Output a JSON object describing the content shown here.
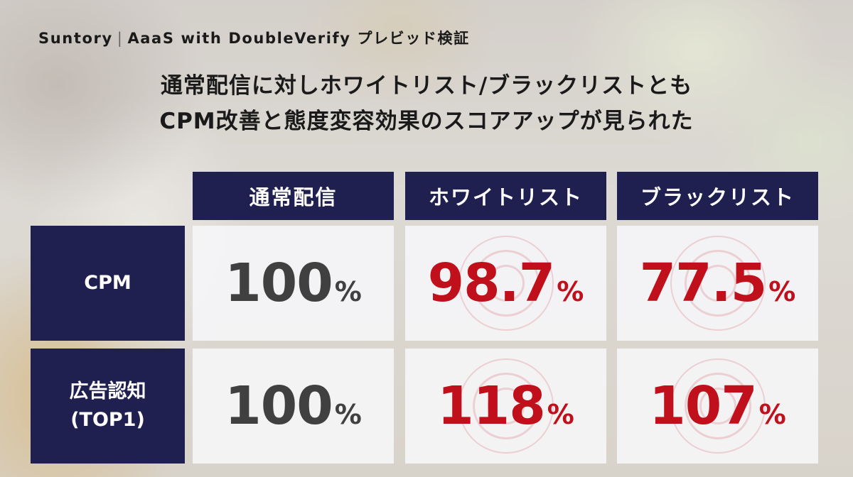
{
  "header": {
    "brand": "Suntory",
    "separator": "|",
    "title": "AaaS with DoubleVerify プレビッド検証"
  },
  "headline": {
    "line1": "通常配信に対しホワイトリスト/ブラックリストとも",
    "line2": "CPM改善と態度変容効果のスコアアップが見られた"
  },
  "table": {
    "columns": [
      "通常配信",
      "ホワイトリスト",
      "ブラックリスト"
    ],
    "rows": [
      {
        "label_line1": "CPM",
        "label_line2": "",
        "values": [
          "100",
          "98.7",
          "77.5"
        ]
      },
      {
        "label_line1": "広告認知",
        "label_line2": "(TOP1)",
        "values": [
          "100",
          "118",
          "107"
        ]
      }
    ],
    "unit": "%"
  },
  "colors": {
    "header_navy": "#1f2050",
    "highlight_red": "#c0101b",
    "baseline_gray": "#404040",
    "cell_bg": "#f4f4f6"
  }
}
